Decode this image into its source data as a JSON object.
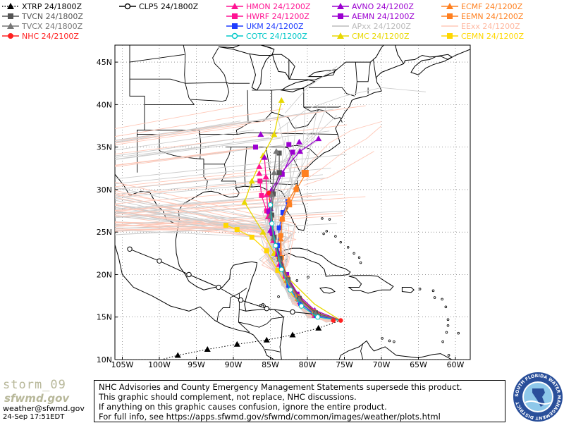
{
  "legend": [
    {
      "label": "XTRP 24/1800Z",
      "color": "#000000",
      "marker": "triangle-dotted"
    },
    {
      "label": "TVCN 24/1800Z",
      "color": "#555555",
      "marker": "square"
    },
    {
      "label": "TVCX 24/1800Z",
      "color": "#777777",
      "marker": "triangle"
    },
    {
      "label": "NHC 24/2100Z",
      "color": "#ff2020",
      "marker": "circle"
    },
    {
      "label": "CLP5 24/1800Z",
      "color": "#000000",
      "marker": "open-circle"
    },
    {
      "label": "HMON 24/1200Z",
      "color": "#ff1493",
      "marker": "triangle"
    },
    {
      "label": "HWRF 24/1200Z",
      "color": "#ff1493",
      "marker": "square"
    },
    {
      "label": "UKM 24/1200Z",
      "color": "#1e3cff",
      "marker": "square"
    },
    {
      "label": "COTC 24/1200Z",
      "color": "#00c8c8",
      "marker": "open-circle"
    },
    {
      "label": "AVNO 24/1200Z",
      "color": "#9b00d0",
      "marker": "triangle"
    },
    {
      "label": "AEMN 24/1200Z",
      "color": "#9b00d0",
      "marker": "square"
    },
    {
      "label": "APxx 24/1200Z",
      "color": "#bbbbbb",
      "marker": "line"
    },
    {
      "label": "CMC 24/1200Z",
      "color": "#e8d800",
      "marker": "triangle"
    },
    {
      "label": "ECMF 24/1200Z",
      "color": "#ff8020",
      "marker": "triangle"
    },
    {
      "label": "EEMN 24/1200Z",
      "color": "#ff8020",
      "marker": "square"
    },
    {
      "label": "EExx 24/1200Z",
      "color": "#ffc8b8",
      "marker": "line"
    },
    {
      "label": "CEMN 24/1200Z",
      "color": "#ffd700",
      "marker": "square"
    }
  ],
  "map": {
    "lon_labels": [
      "105W",
      "100W",
      "95W",
      "90W",
      "85W",
      "80W",
      "75W",
      "70W",
      "65W",
      "60W"
    ],
    "lat_labels": [
      "45N",
      "40N",
      "35N",
      "30N",
      "25N",
      "20N",
      "15N",
      "10N"
    ]
  },
  "footer": {
    "lines": [
      "NHC Advisories and County Emergency Management Statements supersede this product.",
      "This graphic should complement, not replace, NHC discussions.",
      "If anything on this graphic causes confusion, ignore the entire product.",
      "For full info, see   https://apps.sfwmd.gov/sfwmd/common/images/weather/plots.html"
    ]
  },
  "storm_label": "storm_09",
  "logo_text": "sfwmd.gov",
  "email": "weather@sfwmd.gov",
  "datetime": "24-Sep 17:51EDT",
  "seal_text": "SOUTH FLORIDA WATER MANAGEMENT DISTRICT"
}
